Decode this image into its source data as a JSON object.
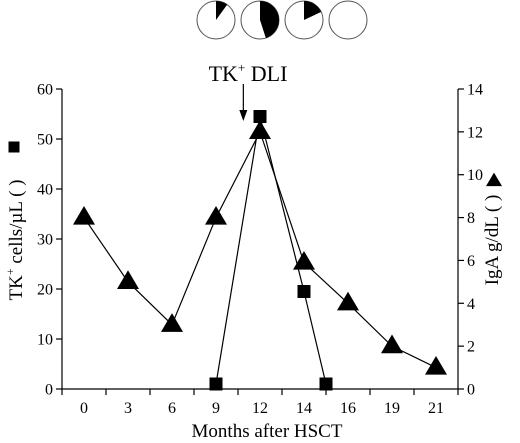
{
  "chart_data": {
    "type": "line",
    "xlabel": "Months after HSCT",
    "ylabel_left": {
      "prefix": "TK",
      "sup": "+",
      "rest": " cells/µL (",
      "close": ")",
      "marker": "square"
    },
    "ylabel_right": {
      "text": "IgA g/dL (",
      "close": ")",
      "marker": "triangle"
    },
    "annotation": {
      "prefix": "TK",
      "sup": "+",
      "rest": " DLI",
      "x_position": 11
    },
    "x_ticks": [
      0,
      3,
      6,
      9,
      12,
      14,
      16,
      19,
      21
    ],
    "y_left": {
      "lim": [
        0,
        60
      ],
      "ticks": [
        0,
        10,
        20,
        30,
        40,
        50,
        60
      ]
    },
    "y_right": {
      "lim": [
        0,
        14
      ],
      "ticks": [
        0,
        2,
        4,
        6,
        8,
        10,
        12,
        14
      ]
    },
    "series": [
      {
        "axis": "left",
        "marker": "square",
        "x": [
          9,
          12,
          14,
          15
        ],
        "y": [
          1,
          54.5,
          19.5,
          1
        ]
      },
      {
        "axis": "right",
        "marker": "triangle",
        "x": [
          0,
          3,
          6,
          9,
          12,
          14,
          16,
          19,
          21
        ],
        "y": [
          8,
          5,
          3,
          8,
          12,
          5.9,
          4,
          2,
          1
        ]
      }
    ],
    "pie_indicators": [
      {
        "fraction": 0.1
      },
      {
        "fraction": 0.45
      },
      {
        "fraction": 0.18
      },
      {
        "fraction": 0
      }
    ],
    "colors": {
      "ink": "#000000",
      "background": "#ffffff"
    }
  }
}
